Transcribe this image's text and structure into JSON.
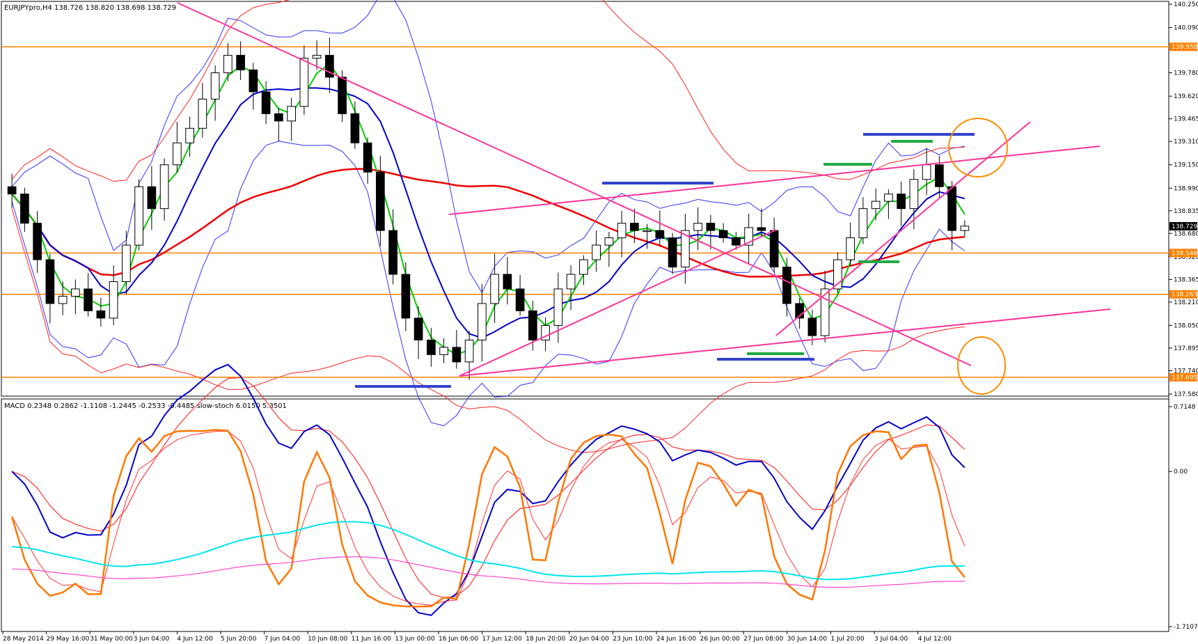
{
  "chart_data": {
    "type": "candlestick",
    "symbol_header": "EURJPYpro,H4  138.726 138.820 138.698 138.729",
    "indicator_header": "MACD 0.2348 0.2862 -1.1108 -1.2445 -0.2533 -0.4485  slow-stoch 6.0150 5.3501",
    "price_axis": {
      "ylim": [
        137.58,
        140.25
      ],
      "ticks": [
        "140.250",
        "140.090",
        "139.780",
        "139.620",
        "139.465",
        "139.310",
        "139.150",
        "138.990",
        "138.835",
        "138.680",
        "138.520",
        "138.365",
        "138.210",
        "138.050",
        "137.895",
        "137.740",
        "137.580"
      ],
      "current_price": "138.729"
    },
    "levels": [
      {
        "value": 139.958,
        "label": "139.958",
        "color": "#ff8000"
      },
      {
        "value": 138.546,
        "label": "138.546",
        "color": "#ff8000"
      },
      {
        "value": 138.263,
        "label": "138.263",
        "color": "#ff8000"
      },
      {
        "value": 137.695,
        "label": "137.695",
        "color": "#ff8000"
      }
    ],
    "indicator_axis": {
      "ylim": [
        -1.7107,
        0.7148
      ],
      "ticks": [
        "0.7148",
        "0.00",
        "-1.7107"
      ]
    },
    "x_labels": [
      "28 May 2014",
      "29 May 16:00",
      "31 May 00:00",
      "3 Jun 04:00",
      "4 Jun 12:00",
      "5 Jun 20:00",
      "7 Jun 04:00",
      "10 Jun 08:00",
      "11 Jun 16:00",
      "13 Jun 00:00",
      "16 Jun 06:00",
      "17 Jun 12:00",
      "18 Jun 20:00",
      "20 Jun 04:00",
      "23 Jun 10:00",
      "24 Jun 16:00",
      "26 Jun 00:00",
      "27 Jun 08:00",
      "30 Jun 14:00",
      "1 Jul 20:00",
      "3 Jul 04:00",
      "4 Jul 12:00"
    ],
    "close": [
      138.95,
      138.75,
      138.5,
      138.2,
      138.25,
      138.3,
      138.15,
      138.1,
      138.35,
      138.6,
      139.0,
      138.85,
      139.15,
      139.3,
      139.4,
      139.6,
      139.78,
      139.9,
      139.8,
      139.65,
      139.5,
      139.45,
      139.55,
      139.88,
      139.9,
      139.75,
      139.5,
      139.3,
      139.1,
      138.7,
      138.4,
      138.1,
      137.95,
      137.85,
      137.9,
      137.8,
      137.95,
      138.2,
      138.4,
      138.3,
      138.15,
      137.95,
      138.05,
      138.3,
      138.4,
      138.5,
      138.6,
      138.65,
      138.75,
      138.7,
      138.7,
      138.65,
      138.45,
      138.7,
      138.75,
      138.7,
      138.65,
      138.6,
      138.72,
      138.7,
      138.45,
      138.2,
      138.1,
      137.98,
      138.3,
      138.5,
      138.65,
      138.85,
      138.9,
      138.95,
      138.85,
      139.05,
      139.15,
      139.0,
      138.7,
      138.73
    ],
    "colors": {
      "bullish": "#ffffff",
      "bearish": "#000000",
      "sma_fast": "#00cc00",
      "sma_mid": "#0000cc",
      "sma_slow": "#ee0000",
      "bands_inner": "#3333ff",
      "bands_outer": "#ff2222",
      "trendline": "#ff3399",
      "marker_blue": "#3344cc",
      "marker_green": "#22aa44",
      "circle": "#ff8c00",
      "macd": "#0000cc",
      "signal": "#ff3333",
      "stoch": "#ff7700",
      "slow_a": "#00e5ee",
      "slow_b": "#ff44cc"
    }
  }
}
